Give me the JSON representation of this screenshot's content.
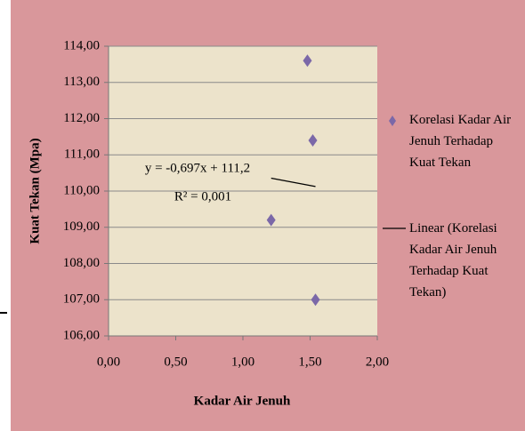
{
  "chart_data": {
    "type": "scatter",
    "x_label": "Kadar Air Jenuh",
    "y_label": "Kuat Tekan (Mpa)",
    "series": [
      {
        "name": "Korelasi Kadar Air Jenuh Terhadap Kuat Tekan",
        "color": "#7b68a8",
        "x": [
          1.48,
          1.52,
          1.21,
          1.54
        ],
        "values": [
          113.6,
          111.4,
          109.2,
          107.0
        ]
      }
    ],
    "trendline": {
      "name": "Linear (Korelasi Kadar Air Jenuh Terhadap Kuat Tekan)",
      "slope": -0.697,
      "intercept": 111.2,
      "equation": "y = -0,697x + 111,2",
      "r2_label": "R² = 0,001",
      "color": "#000000"
    },
    "xlim": [
      0,
      2
    ],
    "ylim": [
      106,
      114
    ],
    "xticks": [
      {
        "value": 0,
        "label": "0,00"
      },
      {
        "value": 0.5,
        "label": "0,50"
      },
      {
        "value": 1,
        "label": "1,00"
      },
      {
        "value": 1.5,
        "label": "1,50"
      },
      {
        "value": 2,
        "label": "2,00"
      }
    ],
    "yticks": [
      {
        "value": 106,
        "label": "106,00"
      },
      {
        "value": 107,
        "label": "107,00"
      },
      {
        "value": 108,
        "label": "108,00"
      },
      {
        "value": 109,
        "label": "109,00"
      },
      {
        "value": 110,
        "label": "110,00"
      },
      {
        "value": 111,
        "label": "111,00"
      },
      {
        "value": 112,
        "label": "112,00"
      },
      {
        "value": 113,
        "label": "113,00"
      },
      {
        "value": 114,
        "label": "114,00"
      }
    ],
    "grid": true
  }
}
